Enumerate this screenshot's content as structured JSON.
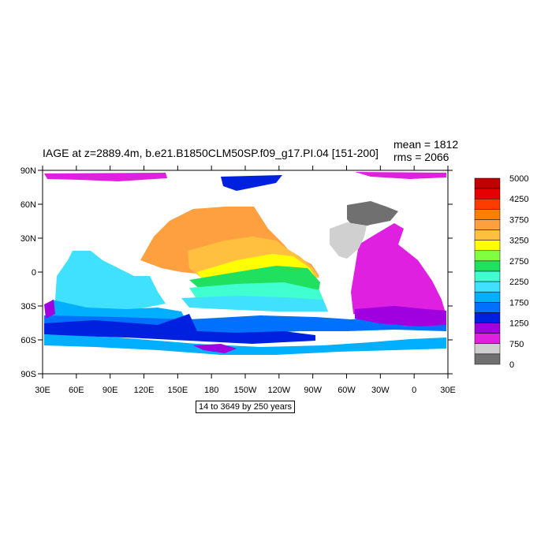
{
  "title": "IAGE at z=2889.4m, b.e21.B1850CLM50SP.f09_g17.PI.04 [151-200]",
  "stats": {
    "mean": "mean = 1812",
    "rms": "rms = 2066"
  },
  "subtitle": "14 to 3649 by 250 years",
  "lat_ticks": [
    "90N",
    "60N",
    "30N",
    "0",
    "30S",
    "60S",
    "90S"
  ],
  "lon_ticks": [
    "30E",
    "60E",
    "90E",
    "120E",
    "150E",
    "180",
    "150W",
    "120W",
    "90W",
    "60W",
    "30W",
    "0",
    "30E"
  ],
  "colorbar": {
    "labels": [
      "5000",
      "4250",
      "3750",
      "3250",
      "2750",
      "2250",
      "1750",
      "1250",
      "750",
      "0"
    ],
    "colors": [
      "#c00000",
      "#e60000",
      "#ff3c00",
      "#ff7f00",
      "#ffa040",
      "#ffc040",
      "#ffff00",
      "#80ff40",
      "#20e060",
      "#40ffd0",
      "#40e0ff",
      "#00b0ff",
      "#0070ff",
      "#0020e0",
      "#a000e0",
      "#e020e0",
      "#d0d0d0",
      "#707070"
    ]
  }
}
